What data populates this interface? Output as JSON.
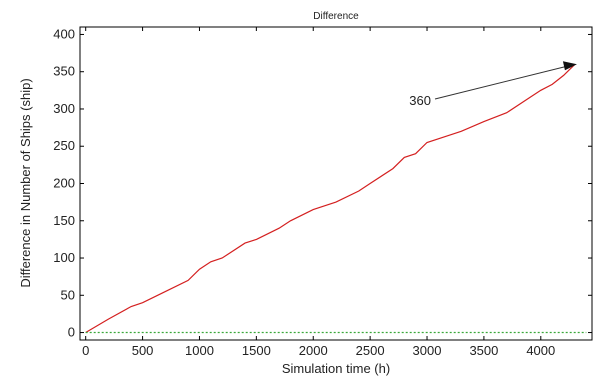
{
  "chart_data": {
    "type": "line",
    "title": "Difference",
    "xlabel": "Simulation time (h)",
    "ylabel": "Difference in Number of Ships (ship)",
    "xlim": [
      -50,
      4450
    ],
    "ylim": [
      -10,
      410
    ],
    "xticks": [
      0,
      500,
      1000,
      1500,
      2000,
      2500,
      3000,
      3500,
      4000
    ],
    "yticks": [
      0,
      50,
      100,
      150,
      200,
      250,
      300,
      350,
      400
    ],
    "grid": false,
    "series": [
      {
        "color": "#d42020",
        "x": [
          0,
          200,
          400,
          500,
          700,
          900,
          1000,
          1100,
          1200,
          1400,
          1500,
          1700,
          1800,
          2000,
          2200,
          2400,
          2500,
          2700,
          2800,
          2900,
          3000,
          3200,
          3300,
          3500,
          3700,
          3900,
          4000,
          4100,
          4200,
          4300
        ],
        "y": [
          0,
          18,
          35,
          40,
          55,
          70,
          85,
          95,
          100,
          120,
          125,
          140,
          150,
          165,
          175,
          190,
          200,
          220,
          235,
          240,
          255,
          265,
          270,
          283,
          295,
          315,
          325,
          333,
          345,
          360
        ]
      },
      {
        "color": "#3aa83a",
        "style": "dotted",
        "x": [
          0,
          4400
        ],
        "y": [
          0,
          0
        ]
      }
    ],
    "annotation": {
      "text": "360",
      "x": 4300,
      "y": 360
    }
  }
}
